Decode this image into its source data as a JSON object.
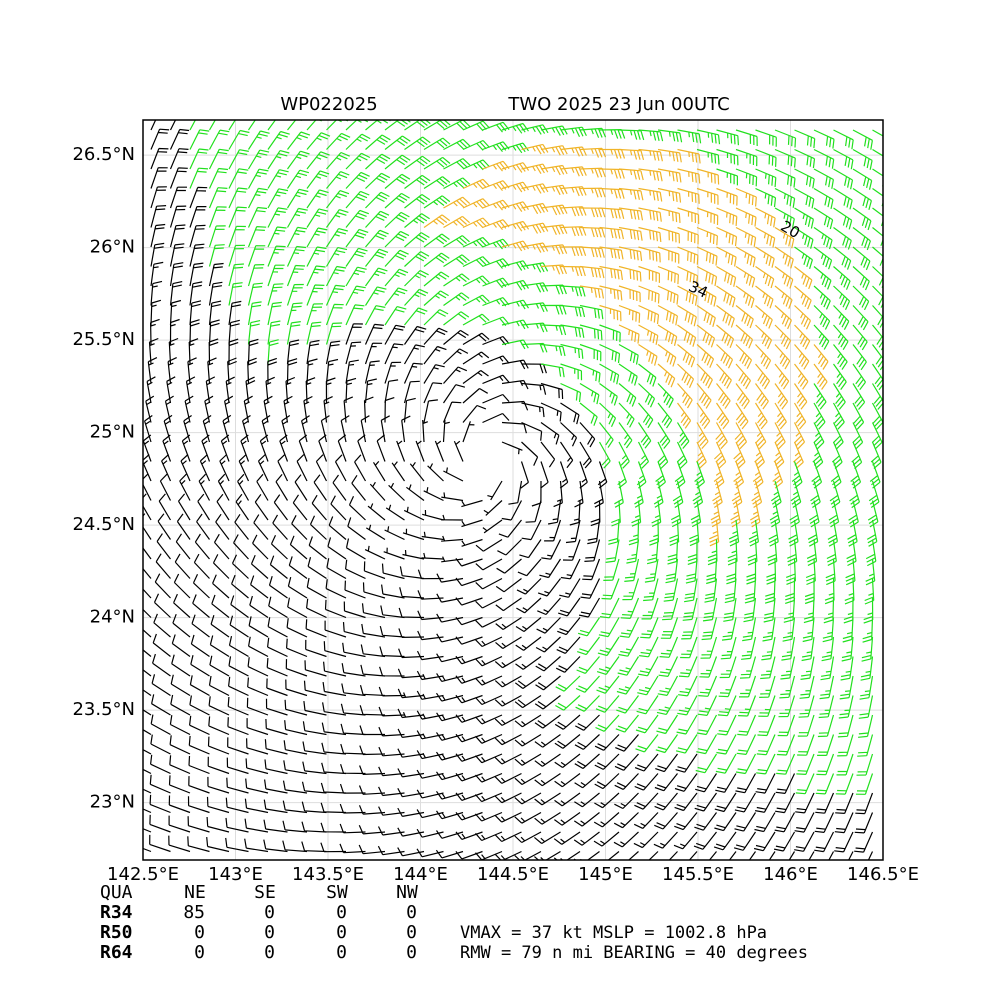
{
  "chart_data": {
    "type": "wind-barbs",
    "title_left": "WP022025",
    "title_right": "TWO 2025 23 Jun 00UTC",
    "xlim": [
      142.5,
      146.5
    ],
    "ylim": [
      22.69,
      26.69
    ],
    "xticks": [
      {
        "value": 142.5,
        "label": "142.5°E"
      },
      {
        "value": 143,
        "label": "143°E"
      },
      {
        "value": 143.5,
        "label": "143.5°E"
      },
      {
        "value": 144,
        "label": "144°E"
      },
      {
        "value": 144.5,
        "label": "144.5°E"
      },
      {
        "value": 145,
        "label": "145°E"
      },
      {
        "value": 145.5,
        "label": "145.5°E"
      },
      {
        "value": 146,
        "label": "146°E"
      },
      {
        "value": 146.5,
        "label": "146.5°E"
      }
    ],
    "yticks": [
      {
        "value": 23,
        "label": "23°N"
      },
      {
        "value": 23.5,
        "label": "23.5°N"
      },
      {
        "value": 24,
        "label": "24°N"
      },
      {
        "value": 24.5,
        "label": "24.5°N"
      },
      {
        "value": 25,
        "label": "25°N"
      },
      {
        "value": 25.5,
        "label": "25.5°N"
      },
      {
        "value": 26,
        "label": "26°N"
      },
      {
        "value": 26.5,
        "label": "26.5°N"
      }
    ],
    "grid": true,
    "center": {
      "lon": 144.35,
      "lat": 24.85
    },
    "contour_labels": [
      20,
      34
    ],
    "colors": [
      "#000000",
      "#22e01e",
      "#f0b428"
    ]
  },
  "table": {
    "header": [
      "QUA",
      "NE",
      "SE",
      "SW",
      "NW"
    ],
    "rows": [
      [
        "R34",
        85,
        0,
        0,
        0
      ],
      [
        "R50",
        0,
        0,
        0,
        0
      ],
      [
        "R64",
        0,
        0,
        0,
        0
      ]
    ]
  },
  "summary": [
    "VMAX =  37 kt MSLP = 1002.8 hPa",
    "RMW =  79 n mi BEARING =  40 degrees"
  ]
}
